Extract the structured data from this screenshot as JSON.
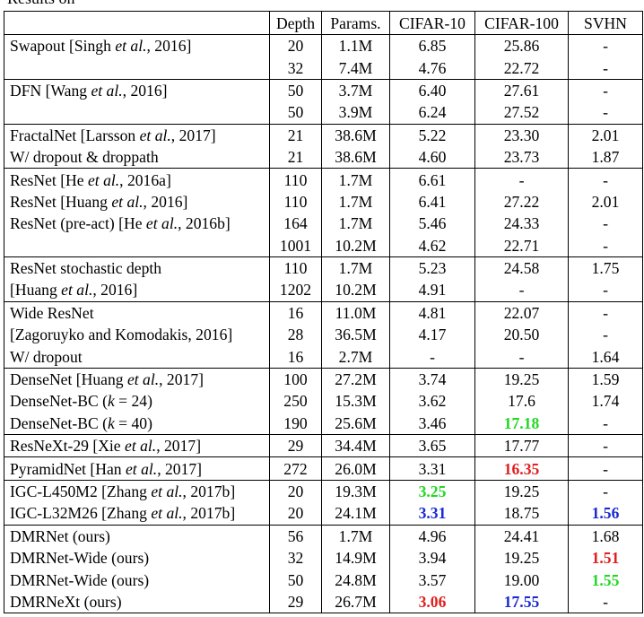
{
  "header": [
    "Depth",
    "Params.",
    "CIFAR-10",
    "CIFAR-100",
    "SVHN"
  ],
  "groups": [
    [
      {
        "m": [
          "Swapout [Singh ",
          "et al.",
          ", 2016]"
        ],
        "d": "20",
        "p": "1.1M",
        "c10": "6.85",
        "c100": "25.86",
        "s": "-"
      },
      {
        "m": [
          ""
        ],
        "d": "32",
        "p": "7.4M",
        "c10": "4.76",
        "c100": "22.72",
        "s": "-"
      }
    ],
    [
      {
        "m": [
          "DFN [Wang ",
          "et al.",
          ", 2016]"
        ],
        "d": "50",
        "p": "3.7M",
        "c10": "6.40",
        "c100": "27.61",
        "s": "-"
      },
      {
        "m": [
          ""
        ],
        "d": "50",
        "p": "3.9M",
        "c10": "6.24",
        "c100": "27.52",
        "s": "-"
      }
    ],
    [
      {
        "m": [
          "FractalNet [Larsson ",
          "et al.",
          ", 2017]"
        ],
        "d": "21",
        "p": "38.6M",
        "c10": "5.22",
        "c100": "23.30",
        "s": "2.01"
      },
      {
        "m": [
          "W/ dropout & droppath"
        ],
        "d": "21",
        "p": "38.6M",
        "c10": "4.60",
        "c100": "23.73",
        "s": "1.87"
      }
    ],
    [
      {
        "m": [
          "ResNet [He ",
          "et al.",
          ", 2016a]"
        ],
        "d": "110",
        "p": "1.7M",
        "c10": "6.61",
        "c100": "-",
        "s": "-"
      },
      {
        "m": [
          "ResNet [Huang ",
          "et al.",
          ", 2016]"
        ],
        "d": "110",
        "p": "1.7M",
        "c10": "6.41",
        "c100": "27.22",
        "s": "2.01"
      },
      {
        "m": [
          "ResNet (pre-act) [He ",
          "et al.",
          ", 2016b]"
        ],
        "d": "164",
        "p": "1.7M",
        "c10": "5.46",
        "c100": "24.33",
        "s": "-"
      },
      {
        "m": [
          ""
        ],
        "d": "1001",
        "p": "10.2M",
        "c10": "4.62",
        "c100": "22.71",
        "s": "-"
      }
    ],
    [
      {
        "m": [
          "ResNet stochastic depth"
        ],
        "d": "110",
        "p": "1.7M",
        "c10": "5.23",
        "c100": "24.58",
        "s": "1.75"
      },
      {
        "m": [
          " [Huang ",
          "et al.",
          ", 2016]"
        ],
        "d": "1202",
        "p": "10.2M",
        "c10": "4.91",
        "c100": "-",
        "s": "-"
      }
    ],
    [
      {
        "m": [
          "Wide ResNet"
        ],
        "d": "16",
        "p": "11.0M",
        "c10": "4.81",
        "c100": "22.07",
        "s": "-"
      },
      {
        "m": [
          "[Zagoruyko and Komodakis, 2016]"
        ],
        "d": "28",
        "p": "36.5M",
        "c10": "4.17",
        "c100": "20.50",
        "s": "-"
      },
      {
        "m": [
          "W/ dropout"
        ],
        "d": "16",
        "p": "2.7M",
        "c10": "-",
        "c100": "-",
        "s": "1.64"
      }
    ],
    [
      {
        "m": [
          "DenseNet [Huang ",
          "et al.",
          ", 2017]"
        ],
        "d": "100",
        "p": "27.2M",
        "c10": "3.74",
        "c100": "19.25",
        "s": "1.59"
      },
      {
        "m": [
          "DenseNet-BC (",
          "k",
          " = 24)"
        ],
        "d": "250",
        "p": "15.3M",
        "c10": "3.62",
        "c100": "17.6",
        "s": "1.74"
      },
      {
        "m": [
          "DenseNet-BC (",
          "k",
          " = 40)"
        ],
        "d": "190",
        "p": "25.6M",
        "c10": "3.46",
        "c100": "17.18",
        "c100_style": "green",
        "s": "-"
      }
    ],
    [
      {
        "m": [
          "ResNeXt-29 [Xie ",
          "et al.",
          ", 2017]"
        ],
        "d": "29",
        "p": "34.4M",
        "c10": "3.65",
        "c100": "17.77",
        "s": "-"
      }
    ],
    [
      {
        "m": [
          "PyramidNet [Han ",
          "et al.",
          ", 2017]"
        ],
        "d": "272",
        "p": "26.0M",
        "c10": "3.31",
        "c100": "16.35",
        "c100_style": "red",
        "s": "-"
      }
    ],
    [
      {
        "m": [
          "IGC-L450M2 [Zhang ",
          "et al.",
          ", 2017b]"
        ],
        "d": "20",
        "p": "19.3M",
        "c10": "3.25",
        "c10_style": "green",
        "c100": "19.25",
        "s": "-"
      },
      {
        "m": [
          "IGC-L32M26 [Zhang ",
          "et al.",
          ", 2017b]"
        ],
        "d": "20",
        "p": "24.1M",
        "c10": "3.31",
        "c10_style": "blue",
        "c100": "18.75",
        "s": "1.56",
        "s_style": "blue"
      }
    ],
    [
      {
        "m": [
          "DMRNet (ours)"
        ],
        "d": "56",
        "p": "1.7M",
        "c10": "4.96",
        "c100": "24.41",
        "s": "1.68"
      },
      {
        "m": [
          "DMRNet-Wide (ours)"
        ],
        "d": "32",
        "p": "14.9M",
        "c10": "3.94",
        "c100": "19.25",
        "s": "1.51",
        "s_style": "red"
      },
      {
        "m": [
          "DMRNet-Wide (ours)"
        ],
        "d": "50",
        "p": "24.8M",
        "c10": "3.57",
        "c100": "19.00",
        "s": "1.55",
        "s_style": "green"
      },
      {
        "m": [
          "DMRNeXt (ours)"
        ],
        "d": "29",
        "p": "26.7M",
        "c10": "3.06",
        "c10_style": "red",
        "c100": "17.55",
        "c100_style": "blue",
        "s": "-"
      }
    ]
  ]
}
